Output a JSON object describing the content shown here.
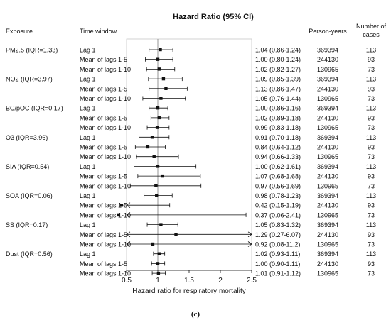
{
  "chart_data": {
    "type": "forest",
    "title": "Hazard Ratio (95% CI)",
    "xlabel": "Hazard ratio for respiratory mortality",
    "xlim": [
      0.5,
      2.5
    ],
    "xticks": [
      "0.5",
      "1",
      "1.5",
      "2",
      "2.5"
    ],
    "reference_line": 1,
    "columns": {
      "exposure": "Exposure",
      "window": "Time window",
      "person_years": "Person-years",
      "cases_line1": "Number of",
      "cases_line2": "cases"
    },
    "groups": [
      {
        "exposure": "PM2.5 (IQR=1.33)",
        "rows": [
          {
            "window": "Lag 1",
            "hr": 1.04,
            "lo": 0.86,
            "hi": 1.24,
            "label": "1.04 (0.86-1.24)",
            "person_years": "369394",
            "cases": "113"
          },
          {
            "window": "Mean of lags 1-5",
            "hr": 1.0,
            "lo": 0.8,
            "hi": 1.24,
            "label": "1.00 (0.80-1.24)",
            "person_years": "244130",
            "cases": "93"
          },
          {
            "window": "Mean of lags 1-10",
            "hr": 1.02,
            "lo": 0.82,
            "hi": 1.27,
            "label": "1.02 (0.82-1.27)",
            "person_years": "130965",
            "cases": "73"
          }
        ]
      },
      {
        "exposure": "NO2 (IQR=3.97)",
        "rows": [
          {
            "window": "Lag 1",
            "hr": 1.09,
            "lo": 0.85,
            "hi": 1.39,
            "label": "1.09 (0.85-1.39)",
            "person_years": "369394",
            "cases": "113"
          },
          {
            "window": "Mean of lags 1-5",
            "hr": 1.13,
            "lo": 0.86,
            "hi": 1.47,
            "label": "1.13 (0.86-1.47)",
            "person_years": "244130",
            "cases": "93"
          },
          {
            "window": "Mean of lags 1-10",
            "hr": 1.05,
            "lo": 0.76,
            "hi": 1.44,
            "label": "1.05 (0.76-1.44)",
            "person_years": "130965",
            "cases": "73"
          }
        ]
      },
      {
        "exposure": "BC/pOC (IQR=0.17)",
        "rows": [
          {
            "window": "Lag 1",
            "hr": 1.0,
            "lo": 0.86,
            "hi": 1.16,
            "label": "1.00 (0.86-1.16)",
            "person_years": "369394",
            "cases": "113"
          },
          {
            "window": "Mean of lags 1-5",
            "hr": 1.02,
            "lo": 0.89,
            "hi": 1.18,
            "label": "1.02 (0.89-1.18)",
            "person_years": "244130",
            "cases": "93"
          },
          {
            "window": "Mean of lags 1-10",
            "hr": 0.99,
            "lo": 0.83,
            "hi": 1.18,
            "label": "0.99 (0.83-1.18)",
            "person_years": "130965",
            "cases": "73"
          }
        ]
      },
      {
        "exposure": "O3 (IQR=3.96)",
        "rows": [
          {
            "window": "Lag 1",
            "hr": 0.91,
            "lo": 0.7,
            "hi": 1.18,
            "label": "0.91 (0.70-1.18)",
            "person_years": "369394",
            "cases": "113"
          },
          {
            "window": "Mean of lags 1-5",
            "hr": 0.84,
            "lo": 0.64,
            "hi": 1.12,
            "label": "0.84 (0.64-1.12)",
            "person_years": "244130",
            "cases": "93"
          },
          {
            "window": "Mean of lags 1-10",
            "hr": 0.94,
            "lo": 0.66,
            "hi": 1.33,
            "label": "0.94 (0.66-1.33)",
            "person_years": "130965",
            "cases": "73"
          }
        ]
      },
      {
        "exposure": "SIA (IQR=0.54)",
        "rows": [
          {
            "window": "Lag 1",
            "hr": 1.0,
            "lo": 0.62,
            "hi": 1.61,
            "label": "1.00 (0.62-1.61)",
            "person_years": "369394",
            "cases": "113"
          },
          {
            "window": "Mean of lags 1-5",
            "hr": 1.07,
            "lo": 0.68,
            "hi": 1.68,
            "label": "1.07 (0.68-1.68)",
            "person_years": "244130",
            "cases": "93"
          },
          {
            "window": "Mean of lags 1-10",
            "hr": 0.97,
            "lo": 0.56,
            "hi": 1.69,
            "label": "0.97 (0.56-1.69)",
            "person_years": "130965",
            "cases": "73"
          }
        ]
      },
      {
        "exposure": "SOA (IQR=0.06)",
        "rows": [
          {
            "window": "Lag 1",
            "hr": 0.98,
            "lo": 0.78,
            "hi": 1.23,
            "label": "0.98 (0.78-1.23)",
            "person_years": "369394",
            "cases": "113"
          },
          {
            "window": "Mean of lags 1-5",
            "hr": 0.42,
            "lo": 0.15,
            "hi": 1.19,
            "label": "0.42 (0.15-1.19)",
            "person_years": "244130",
            "cases": "93"
          },
          {
            "window": "Mean of lags 1-10",
            "hr": 0.37,
            "lo": 0.06,
            "hi": 2.41,
            "label": "0.37 (0.06-2.41)",
            "person_years": "130965",
            "cases": "73"
          }
        ]
      },
      {
        "exposure": "SS (IQR=0.17)",
        "rows": [
          {
            "window": "Lag 1",
            "hr": 1.05,
            "lo": 0.83,
            "hi": 1.32,
            "label": "1.05 (0.83-1.32)",
            "person_years": "369394",
            "cases": "113"
          },
          {
            "window": "Mean of lags 1-5",
            "hr": 1.29,
            "lo": 0.27,
            "hi": 6.07,
            "label": "1.29 (0.27-6.07)",
            "person_years": "244130",
            "cases": "93"
          },
          {
            "window": "Mean of lags 1-10",
            "hr": 0.92,
            "lo": 0.08,
            "hi": 11.2,
            "label": "0.92 (0.08-11.2)",
            "person_years": "130965",
            "cases": "73"
          }
        ]
      },
      {
        "exposure": "Dust (IQR=0.56)",
        "rows": [
          {
            "window": "Lag 1",
            "hr": 1.02,
            "lo": 0.93,
            "hi": 1.11,
            "label": "1.02 (0.93-1.11)",
            "person_years": "369394",
            "cases": "113"
          },
          {
            "window": "Mean of lags 1-5",
            "hr": 1.0,
            "lo": 0.9,
            "hi": 1.11,
            "label": "1.00 (0.90-1.11)",
            "person_years": "244130",
            "cases": "93"
          },
          {
            "window": "Mean of lags 1-10",
            "hr": 1.01,
            "lo": 0.91,
            "hi": 1.12,
            "label": "1.01 (0.91-1.12)",
            "person_years": "130965",
            "cases": "73"
          }
        ]
      }
    ]
  },
  "caption": "(c)"
}
